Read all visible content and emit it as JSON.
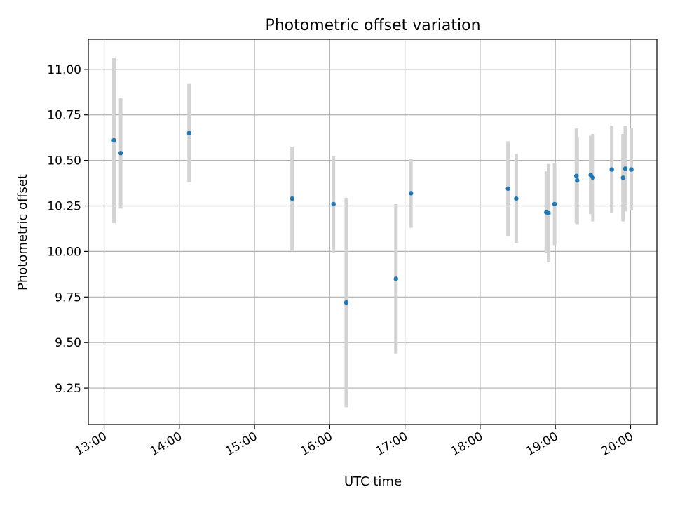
{
  "chart_data": {
    "type": "scatter",
    "title": "Photometric offset variation",
    "xlabel": "UTC time",
    "ylabel": "Photometric offset",
    "x_unit": "hours UTC",
    "xlim": [
      12.79,
      20.35
    ],
    "ylim": [
      9.05,
      11.165
    ],
    "xticks": [
      {
        "value": 13,
        "label": "13:00"
      },
      {
        "value": 14,
        "label": "14:00"
      },
      {
        "value": 15,
        "label": "15:00"
      },
      {
        "value": 16,
        "label": "16:00"
      },
      {
        "value": 17,
        "label": "17:00"
      },
      {
        "value": 18,
        "label": "18:00"
      },
      {
        "value": 19,
        "label": "19:00"
      },
      {
        "value": 20,
        "label": "20:00"
      }
    ],
    "yticks": [
      {
        "value": 9.25,
        "label": "9.25"
      },
      {
        "value": 9.5,
        "label": "9.50"
      },
      {
        "value": 9.75,
        "label": "9.75"
      },
      {
        "value": 10.0,
        "label": "10.00"
      },
      {
        "value": 10.25,
        "label": "10.25"
      },
      {
        "value": 10.5,
        "label": "10.50"
      },
      {
        "value": 10.75,
        "label": "10.75"
      },
      {
        "value": 11.0,
        "label": "11.00"
      }
    ],
    "grid": true,
    "colors": {
      "points": "#1f77b4",
      "errorbars": "#d3d3d3",
      "grid": "#b0b0b0"
    },
    "points": [
      {
        "x": 13.13,
        "y": 10.61,
        "err": 0.455
      },
      {
        "x": 13.22,
        "y": 10.54,
        "err": 0.305
      },
      {
        "x": 14.13,
        "y": 10.65,
        "err": 0.27
      },
      {
        "x": 15.5,
        "y": 10.29,
        "err": 0.285
      },
      {
        "x": 16.05,
        "y": 10.26,
        "err": 0.265
      },
      {
        "x": 16.22,
        "y": 9.72,
        "err": 0.575
      },
      {
        "x": 16.88,
        "y": 9.85,
        "err": 0.41
      },
      {
        "x": 17.08,
        "y": 10.32,
        "err": 0.19
      },
      {
        "x": 18.37,
        "y": 10.345,
        "err": 0.26
      },
      {
        "x": 18.48,
        "y": 10.29,
        "err": 0.245
      },
      {
        "x": 18.88,
        "y": 10.215,
        "err": 0.225
      },
      {
        "x": 18.91,
        "y": 10.21,
        "err": 0.27
      },
      {
        "x": 18.99,
        "y": 10.26,
        "err": 0.225
      },
      {
        "x": 19.28,
        "y": 10.415,
        "err": 0.26
      },
      {
        "x": 19.29,
        "y": 10.39,
        "err": 0.24
      },
      {
        "x": 19.47,
        "y": 10.42,
        "err": 0.215
      },
      {
        "x": 19.5,
        "y": 10.405,
        "err": 0.24
      },
      {
        "x": 19.75,
        "y": 10.45,
        "err": 0.24
      },
      {
        "x": 19.9,
        "y": 10.405,
        "err": 0.24
      },
      {
        "x": 19.93,
        "y": 10.455,
        "err": 0.235
      },
      {
        "x": 20.01,
        "y": 10.45,
        "err": 0.225
      }
    ]
  }
}
